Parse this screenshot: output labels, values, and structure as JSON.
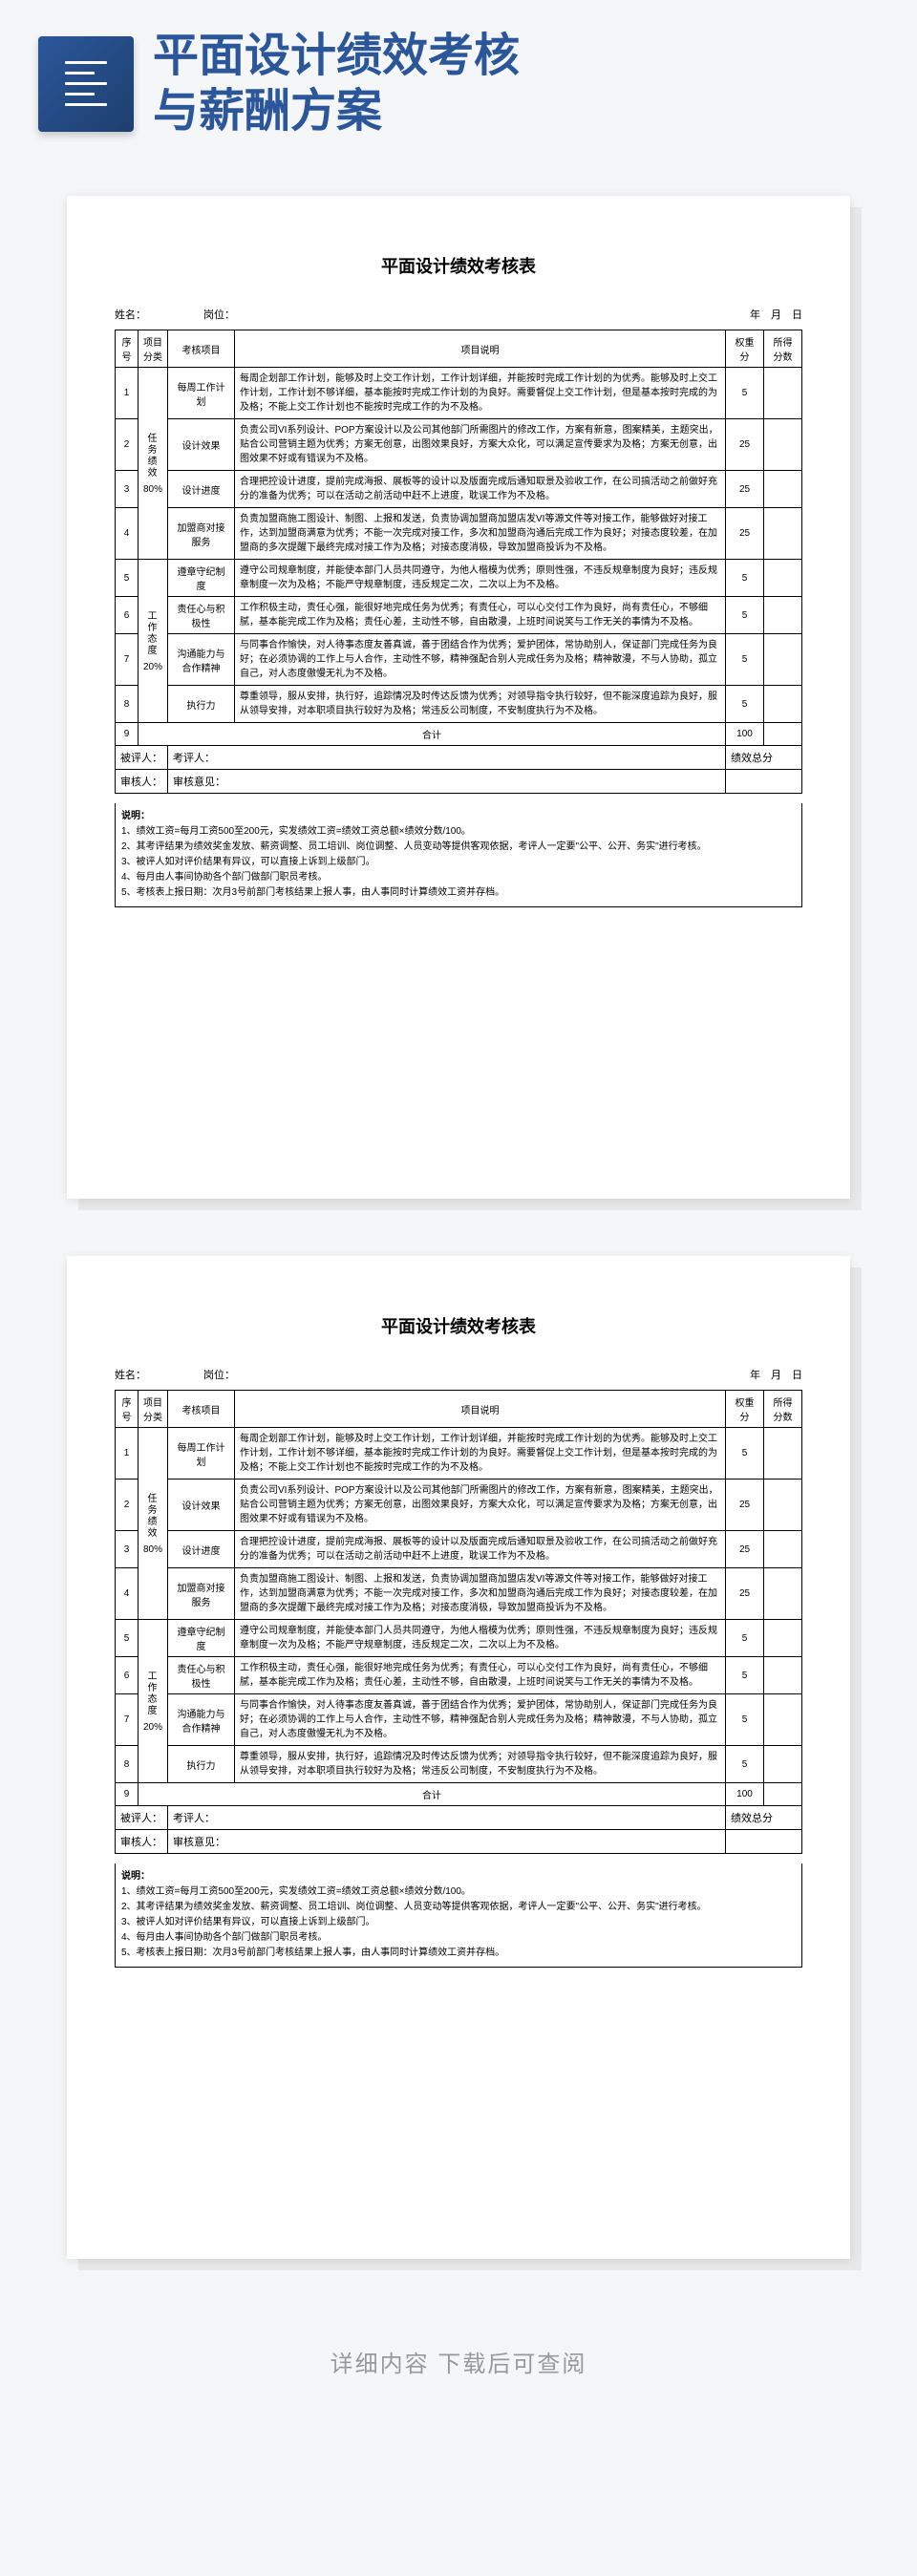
{
  "header": {
    "title_line1": "平面设计绩效考核",
    "title_line2": "与薪酬方案"
  },
  "colors": {
    "accent": "#2b579a",
    "text_gray": "#999999",
    "bg": "#f5f6f8"
  },
  "doc": {
    "title": "平面设计绩效考核表",
    "field_name": "姓名：",
    "field_position": "岗位：",
    "field_date": "年　月　日",
    "columns": {
      "seq": "序号",
      "category": "项目分类",
      "item": "考核项目",
      "desc": "项目说明",
      "weight": "权重分",
      "score": "所得分数"
    },
    "categories": [
      {
        "label": "任务绩效",
        "pct": "80%",
        "rows": [
          {
            "seq": "1",
            "item": "每周工作计划",
            "desc": "每周企划部工作计划，能够及时上交工作计划，工作计划详细，并能按时完成工作计划的为优秀。能够及时上交工作计划，工作计划不够详细，基本能按时完成工作计划的为良好。需要督促上交工作计划，但是基本按时完成的为及格；不能上交工作计划也不能按时完成工作的为不及格。",
            "weight": "5"
          },
          {
            "seq": "2",
            "item": "设计效果",
            "desc": "负责公司VI系列设计、POP方案设计以及公司其他部门所需图片的修改工作，方案有新意，图案精美，主题突出，贴合公司营销主题为优秀；方案无创意，出图效果良好，方案大众化，可以满足宣传要求为及格；方案无创意，出图效果不好或有错误为不及格。",
            "weight": "25"
          },
          {
            "seq": "3",
            "item": "设计进度",
            "desc": "合理把控设计进度，提前完成海报、展板等的设计以及版面完成后通知取景及验收工作，在公司搞活动之前做好充分的准备为优秀；可以在活动之前活动中赶不上进度，耽误工作为不及格。",
            "weight": "25"
          },
          {
            "seq": "4",
            "item": "加盟商对接服务",
            "desc": "负责加盟商施工图设计、制图、上报和发送，负责协调加盟商加盟店发VI等源文件等对接工作，能够做好对接工作，达到加盟商满意为优秀；不能一次完成对接工作，多次和加盟商沟通后完成工作为良好；对接态度较差，在加盟商的多次提醒下最终完成对接工作为及格；对接态度消极，导致加盟商投诉为不及格。",
            "weight": "25"
          }
        ]
      },
      {
        "label": "工作态度",
        "pct": "20%",
        "rows": [
          {
            "seq": "5",
            "item": "遵章守纪制度",
            "desc": "遵守公司规章制度，并能使本部门人员共同遵守，为他人楷模为优秀；原则性强，不违反规章制度为良好；违反规章制度一次为及格；不能严守规章制度，违反规定二次，二次以上为不及格。",
            "weight": "5"
          },
          {
            "seq": "6",
            "item": "责任心与积极性",
            "desc": "工作积极主动，责任心强，能很好地完成任务为优秀；有责任心，可以心交付工作为良好，尚有责任心，不够细腻，基本能完成工作为及格；责任心差，主动性不够，自由散漫，上班时间说笑与工作无关的事情为不及格。",
            "weight": "5"
          },
          {
            "seq": "7",
            "item": "沟通能力与合作精神",
            "desc": "与同事合作愉快，对人待事态度友善真诚，善于团结合作为优秀；爱护团体，常协助别人，保证部门完成任务为良好；在必须协调的工作上与人合作，主动性不够，精神强配合别人完成任务为及格；精神散漫，不与人协助，孤立自己，对人态度傲慢无礼为不及格。",
            "weight": "5"
          },
          {
            "seq": "8",
            "item": "执行力",
            "desc": "尊重领导，服从安排，执行好，追踪情况及时传达反馈为优秀；对领导指令执行较好，但不能深度追踪为良好，服从领导安排，对本职项目执行较好为及格；常违反公司制度，不安制度执行为不及格。",
            "weight": "5"
          }
        ]
      }
    ],
    "sum_row": {
      "seq": "9",
      "label": "合计",
      "weight": "100"
    },
    "signatures": {
      "evaluated": "被评人：",
      "evaluator": "考评人：",
      "reviewer": "审核人：",
      "review_opinion": "审核意见：",
      "total_score": "绩效总分"
    },
    "notes": {
      "title": "说明：",
      "items": [
        "1、绩效工资=每月工资500至200元，实发绩效工资=绩效工资总额×绩效分数/100。",
        "2、其考评结果为绩效奖金发放、薪资调整、员工培训、岗位调整、人员变动等提供客观依据，考评人一定要\"公平、公开、务实\"进行考核。",
        "3、被评人如对评价结果有异议，可以直接上诉到上级部门。",
        "4、每月由人事间协助各个部门做部门职员考核。",
        "5、考核表上报日期：次月3号前部门考核结果上报人事，由人事同时计算绩效工资并存档。"
      ]
    }
  },
  "footer": {
    "text": "详细内容 下载后可查阅"
  }
}
